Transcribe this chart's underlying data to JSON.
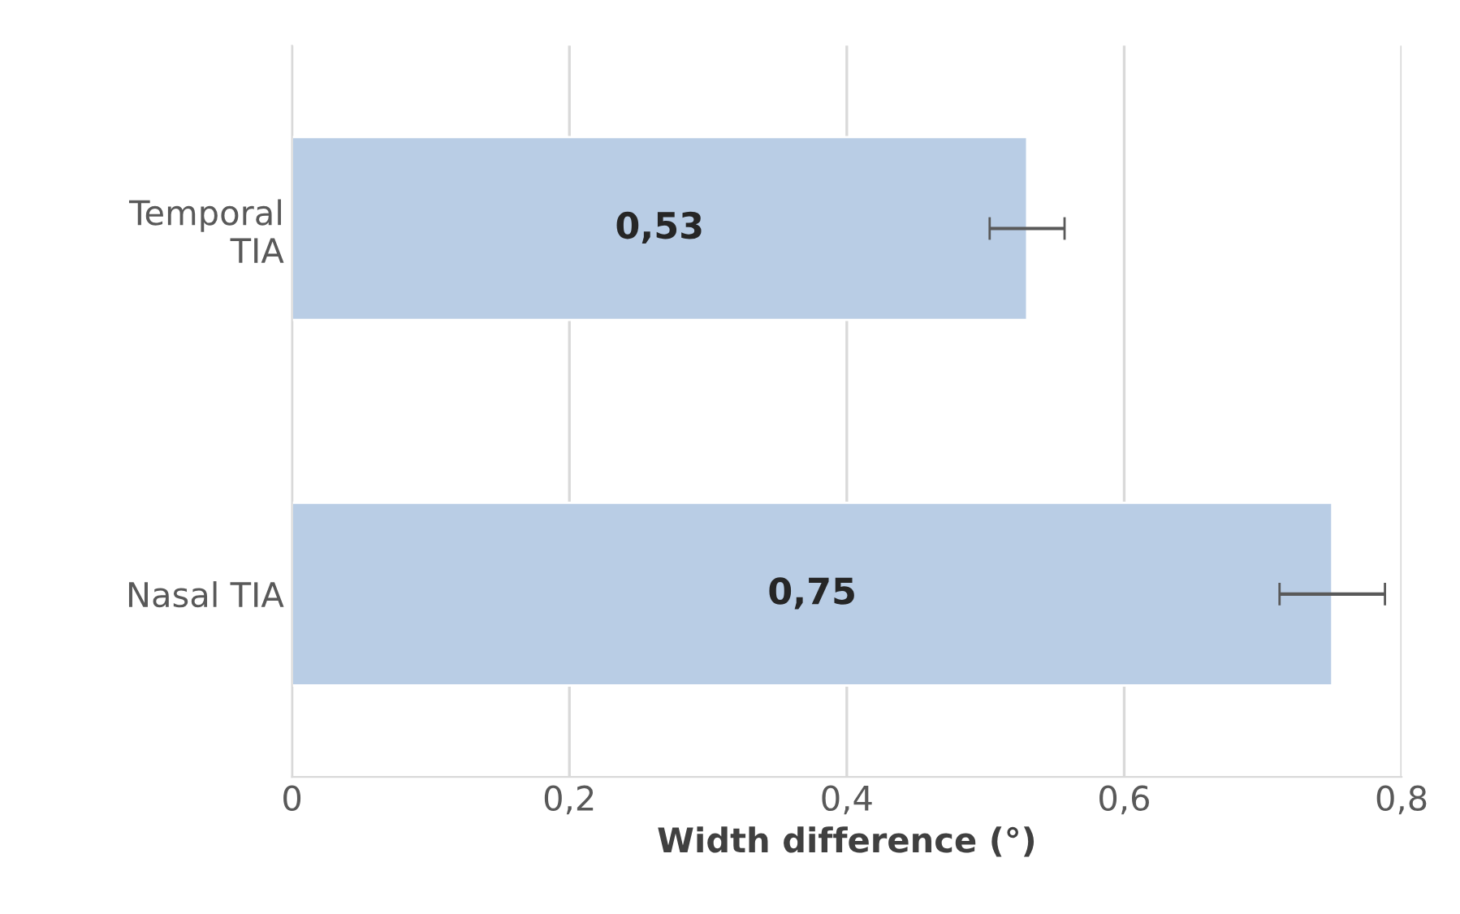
{
  "chart_data": {
    "type": "bar",
    "orientation": "horizontal",
    "xlabel": "Width difference (°)",
    "categories": [
      "Temporal\nTIA",
      "Nasal TIA"
    ],
    "values": [
      0.53,
      0.75
    ],
    "errors": [
      0.027,
      0.038
    ],
    "value_labels": [
      "0,53",
      "0,75"
    ],
    "color": "#b9cde5",
    "xlim": [
      0,
      0.8
    ],
    "xticks": [
      0,
      {
        "value": 0.2,
        "label": "0,2"
      },
      {
        "value": 0.4,
        "label": "0,4"
      },
      {
        "value": 0.6,
        "label": "0,6"
      },
      {
        "value": 0.8,
        "label": "0,8"
      }
    ],
    "grid": "x"
  }
}
